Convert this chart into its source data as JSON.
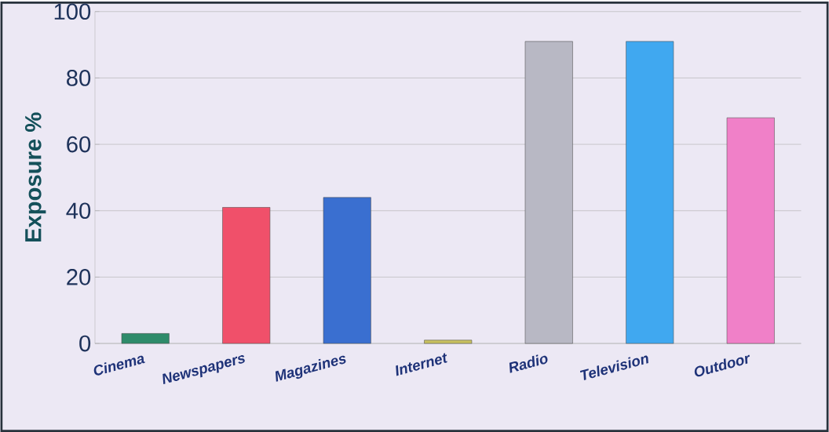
{
  "chart_data": {
    "type": "bar",
    "ylabel": "Exposure %",
    "categories": [
      "Cinema",
      "Newspapers",
      "Magazines",
      "Internet",
      "Radio",
      "Television",
      "Outdoor"
    ],
    "values": [
      3,
      41,
      44,
      1,
      91,
      91,
      68
    ],
    "colors": [
      "#2e8b6a",
      "#f0506a",
      "#3a6fd0",
      "#c8c060",
      "#b8b8c4",
      "#40a8f0",
      "#f080c8"
    ],
    "ylim": [
      0,
      100
    ],
    "yticks": [
      0,
      20,
      40,
      60,
      80,
      100
    ],
    "grid": "y"
  }
}
